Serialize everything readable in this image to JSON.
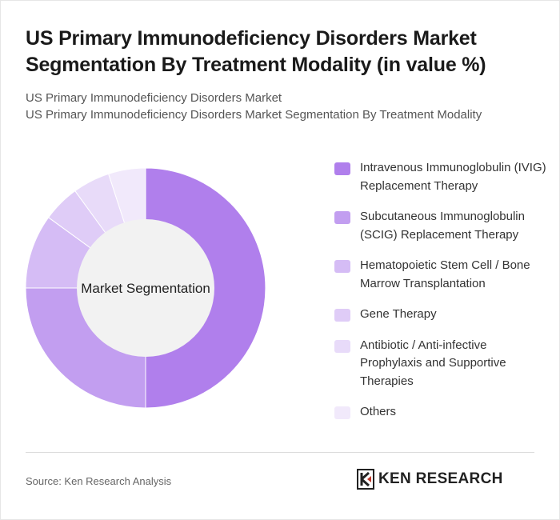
{
  "header": {
    "title": "US Primary Immunodeficiency Disorders Market Segmentation By Treatment Modality (in value %)",
    "subtitle_line1": "US Primary Immunodeficiency Disorders Market",
    "subtitle_line2": "US Primary Immunodeficiency Disorders Market Segmentation By Treatment Modality"
  },
  "chart_data": {
    "type": "pie",
    "variant": "donut",
    "center_label": "Market Segmentation",
    "categories": [
      "Intravenous Immunoglobulin (IVIG) Replacement Therapy",
      "Subcutaneous Immunoglobulin (SCIG) Replacement Therapy",
      "Hematopoietic Stem Cell / Bone Marrow Transplantation",
      "Gene Therapy",
      "Antibiotic / Anti-infective Prophylaxis and Supportive Therapies",
      "Others"
    ],
    "values": [
      50,
      25,
      10,
      5,
      5,
      5
    ],
    "colors": [
      "#b07fec",
      "#c29ef0",
      "#d5bcf5",
      "#dfccf7",
      "#e8dbf9",
      "#f1e9fb"
    ],
    "legend_position": "right"
  },
  "footer": {
    "source": "Source: Ken Research Analysis",
    "logo_text": "KEN RESEARCH"
  }
}
